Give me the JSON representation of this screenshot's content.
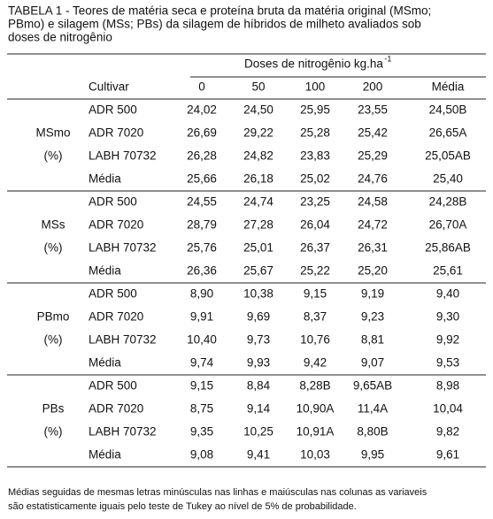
{
  "caption": [
    "TABELA 1 - Teores de matéria seca e proteína bruta da matéria original (MSmo;",
    "PBmo) e silagem (MSs; PBs) da silagem de híbridos de milheto avaliados sob",
    "doses de nitrogênio"
  ],
  "header": {
    "doses": "Doses de nitrogênio kg.ha",
    "doses_sup": "-1",
    "columns": [
      "Cultivar",
      "0",
      "50",
      "100",
      "200",
      "Média"
    ]
  },
  "groups": [
    {
      "label": "MSmo",
      "unit": "(%)",
      "rows": [
        [
          "ADR 500",
          "24,02",
          "24,50",
          "25,95",
          "23,55",
          "24,50B"
        ],
        [
          "ADR 7020",
          "26,69",
          "29,22",
          "25,28",
          "25,42",
          "26,65A"
        ],
        [
          "LABH 70732",
          "26,28",
          "24,82",
          "23,83",
          "25,29",
          "25,05AB"
        ],
        [
          "Média",
          "25,66",
          "26,18",
          "25,02",
          "24,76",
          "25,40"
        ]
      ]
    },
    {
      "label": "MSs",
      "unit": "(%)",
      "rows": [
        [
          "ADR 500",
          "24,55",
          "24,74",
          "23,25",
          "24,58",
          "24,28B"
        ],
        [
          "ADR 7020",
          "28,79",
          "27,28",
          "26,04",
          "24,72",
          "26,70A"
        ],
        [
          "LABH 70732",
          "25,76",
          "25,01",
          "26,37",
          "26,31",
          "25,86AB"
        ],
        [
          "Média",
          "26,36",
          "25,67",
          "25,22",
          "25,20",
          "25,61"
        ]
      ]
    },
    {
      "label": "PBmo",
      "unit": "(%)",
      "rows": [
        [
          "ADR 500",
          "8,90",
          "10,38",
          "9,15",
          "9,19",
          "9,40"
        ],
        [
          "ADR 7020",
          "9,91",
          "9,69",
          "8,37",
          "9,23",
          "9,30"
        ],
        [
          "LABH 70732",
          "10,40",
          "9,73",
          "10,76",
          "8,81",
          "9,92"
        ],
        [
          "Média",
          "9,74",
          "9,93",
          "9,42",
          "9,07",
          "9,53"
        ]
      ]
    },
    {
      "label": "PBs",
      "unit": "(%)",
      "rows": [
        [
          "ADR 500",
          "9,15",
          "8,84",
          "8,28B",
          "9,65AB",
          "8,98"
        ],
        [
          "ADR 7020",
          "8,75",
          "9,14",
          "10,90A",
          "11,4A",
          "10,04"
        ],
        [
          "LABH 70732",
          "9,35",
          "10,25",
          "10,91A",
          "8,80B",
          "9,82"
        ],
        [
          "Média",
          "9,08",
          "9,41",
          "10,03",
          "9,95",
          "9,61"
        ]
      ]
    }
  ],
  "footnote": [
    "Médias seguidas de mesmas letras minúsculas nas linhas e maiúsculas nas colunas as variaveis",
    "são estatisticamente iguais pelo teste de Tukey ao nível de 5% de probabilidade."
  ]
}
